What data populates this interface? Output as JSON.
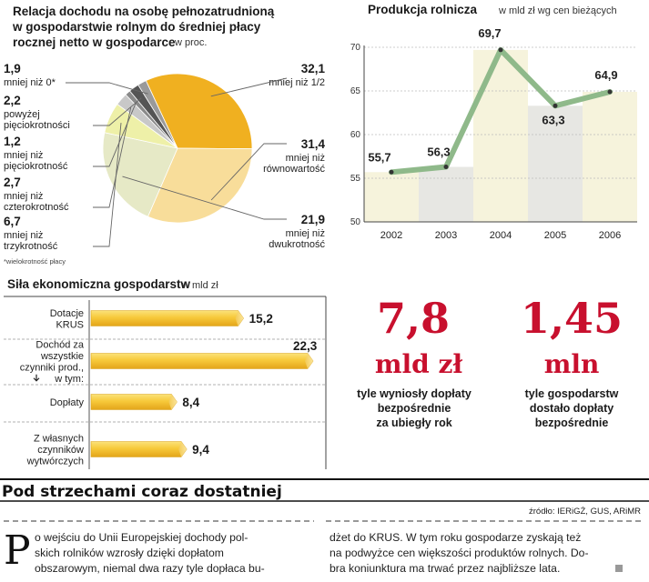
{
  "pie_chart": {
    "title_lines": [
      "Relacja dochodu na osobę pełnozatrudnioną",
      "w gospodarstwie rolnym do średniej płacy",
      "rocznej netto w gospodarce"
    ],
    "unit": "w proc.",
    "footnote": "*wielokrotność płacy"
  },
  "line_chart": {
    "title": "Produkcja rolnicza",
    "unit": "w mld zł wg cen bieżących"
  },
  "bar_chart": {
    "title": "Siła ekonomiczna gospodarstw",
    "unit": "w mld zł",
    "sub_label": "w tym:"
  },
  "stats": {
    "stat1_value": "7,8",
    "stat1_unit": "mld zł",
    "stat1_caption": [
      "tyle wyniosły dopłaty",
      "bezpośrednie",
      "za ubiegły rok"
    ],
    "stat2_value": "1,45",
    "stat2_unit": "mln",
    "stat2_caption": [
      "tyle gospodarstw",
      "dostało dopłaty",
      "bezpośrednie"
    ]
  },
  "article": {
    "headline": "Pod strzechami coraz dostatniej",
    "source": "źródło: IERiGŻ, GUS, ARiMR",
    "dropcap": "P",
    "col1": [
      "o wejściu do Unii Europejskiej dochody pol-",
      "skich rolników wzrosły dzięki dopłatom",
      "obszarowym, niemal dwa razy tyle dopłaca bu-"
    ],
    "col2": [
      "dżet do KRUS. W tym roku gospodarze zyskają też",
      "na podwyżce cen większości produktów rolnych. Do-",
      "bra koniunktura ma trwać przez najbliższe lata."
    ]
  },
  "colors": {
    "accent": "#c8102e",
    "pie_dark": "#f0b020",
    "pie_light": "#f8dd9a",
    "line_green": "#8fb98a",
    "bar_yellow": "#f5c430"
  },
  "chart_data": [
    {
      "type": "pie",
      "title": "Relacja dochodu na osobę pełnozatrudnioną w gospodarstwie rolnym do średniej płacy rocznej netto w gospodarce",
      "unit": "w proc.",
      "slices": [
        {
          "value": 32.1,
          "value_label": "32,1",
          "label": [
            "mniej niż 1/2"
          ],
          "color": "#f0b020"
        },
        {
          "value": 31.4,
          "value_label": "31,4",
          "label": [
            "mniej niż",
            "równowartość"
          ],
          "color": "#f8dd9a"
        },
        {
          "value": 21.9,
          "value_label": "21,9",
          "label": [
            "mniej niż",
            "dwukrotność"
          ],
          "color": "#e6e9c6"
        },
        {
          "value": 6.7,
          "value_label": "6,7",
          "label": [
            "mniej niż",
            "trzykrotność"
          ],
          "color": "#eef0a8"
        },
        {
          "value": 2.7,
          "value_label": "2,7",
          "label": [
            "mniej niż",
            "czterokrotność"
          ],
          "color": "#c8c8c8"
        },
        {
          "value": 1.2,
          "value_label": "1,2",
          "label": [
            "mniej niż",
            "pięciokrotność"
          ],
          "color": "#8a8a8a"
        },
        {
          "value": 2.2,
          "value_label": "2,2",
          "label": [
            "powyżej",
            "pięciokrotności"
          ],
          "color": "#555555"
        },
        {
          "value": 1.9,
          "value_label": "1,9",
          "label": [
            "mniej niż 0*"
          ],
          "color": "#9a9a9a"
        }
      ]
    },
    {
      "type": "line",
      "title": "Produkcja rolnicza",
      "ylabel": "w mld zł wg cen bieżących",
      "x": [
        "2002",
        "2003",
        "2004",
        "2005",
        "2006"
      ],
      "values": [
        55.7,
        56.3,
        69.7,
        63.3,
        64.9
      ],
      "value_labels": [
        "55,7",
        "56,3",
        "69,7",
        "63,3",
        "64,9"
      ],
      "ylim": [
        50,
        70
      ],
      "yticks": [
        50,
        55,
        60,
        65,
        70
      ],
      "grid": true
    },
    {
      "type": "bar",
      "orientation": "horizontal",
      "title": "Siła ekonomiczna gospodarstw",
      "unit": "w mld zł",
      "categories": [
        [
          "Dotacje",
          "KRUS"
        ],
        [
          "Dochód za",
          "wszystkie",
          "czynniki prod.,"
        ],
        [
          "Dopłaty"
        ],
        [
          "Z własnych",
          "czynników",
          "wytwórczych"
        ]
      ],
      "values": [
        15.2,
        22.3,
        8.4,
        9.4
      ],
      "value_labels": [
        "15,2",
        "22,3",
        "8,4",
        "9,4"
      ]
    }
  ]
}
